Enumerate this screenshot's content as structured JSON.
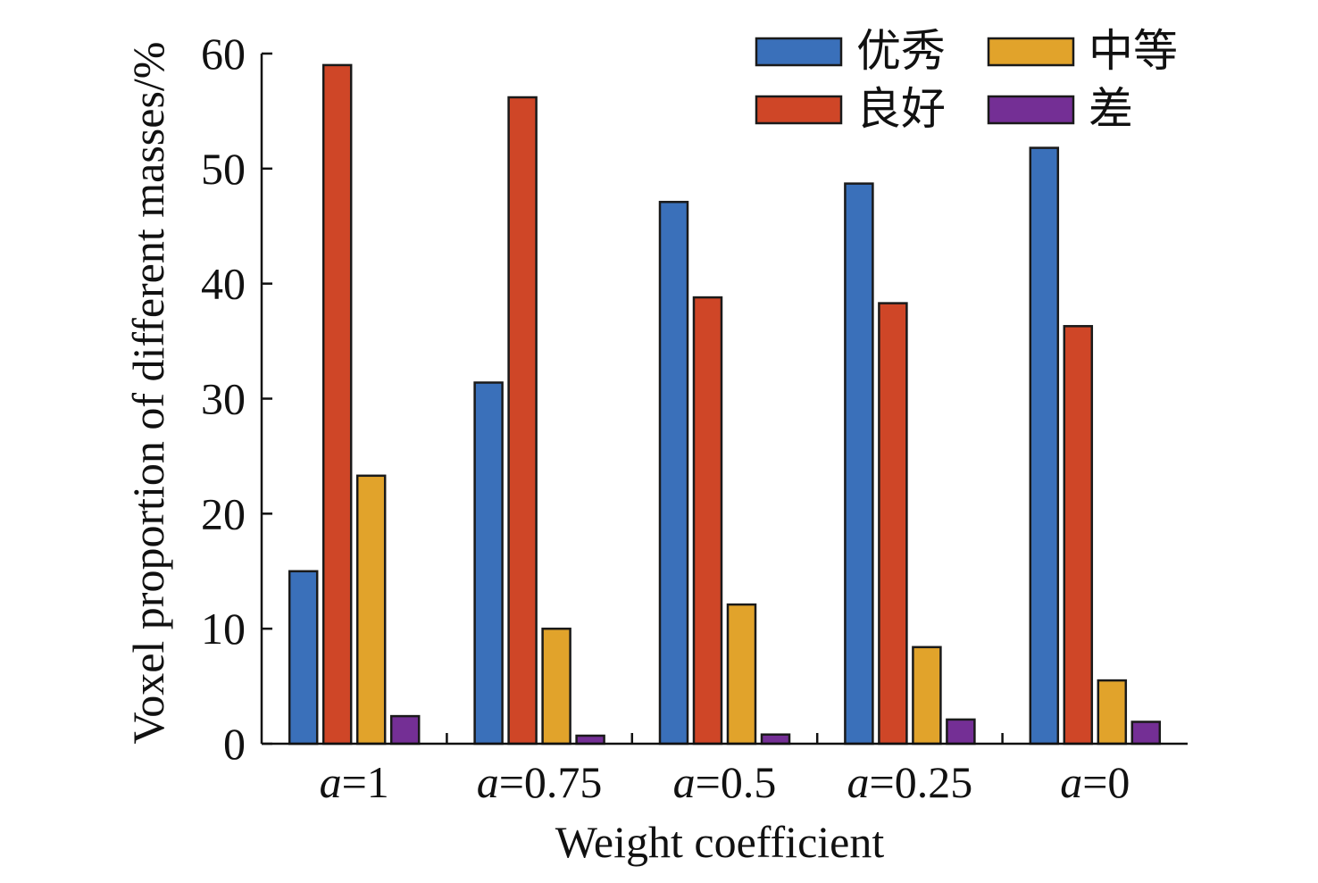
{
  "chart_data": {
    "type": "bar",
    "title": "",
    "xlabel": "Weight coefficient",
    "ylabel": "Voxel proportion of different masses/%",
    "ylim": [
      0,
      60
    ],
    "yticks": [
      0,
      10,
      20,
      30,
      40,
      50,
      60
    ],
    "grid": false,
    "legend_position": "top-right",
    "categories": [
      {
        "var": "a",
        "rest": "=1"
      },
      {
        "var": "a",
        "rest": "=0.75"
      },
      {
        "var": "a",
        "rest": "=0.5"
      },
      {
        "var": "a",
        "rest": "=0.25"
      },
      {
        "var": "a",
        "rest": "=0"
      }
    ],
    "series": [
      {
        "name": "优秀",
        "color": "#3A70BA",
        "values": [
          15.0,
          31.4,
          47.1,
          48.7,
          51.8
        ]
      },
      {
        "name": "良好",
        "color": "#CF4627",
        "values": [
          59.0,
          56.2,
          38.8,
          38.3,
          36.3
        ]
      },
      {
        "name": "中等",
        "color": "#E1A32B",
        "values": [
          23.3,
          10.0,
          12.1,
          8.4,
          5.5
        ]
      },
      {
        "name": "差",
        "color": "#742F95",
        "values": [
          2.4,
          0.7,
          0.8,
          2.1,
          1.9
        ]
      }
    ]
  }
}
